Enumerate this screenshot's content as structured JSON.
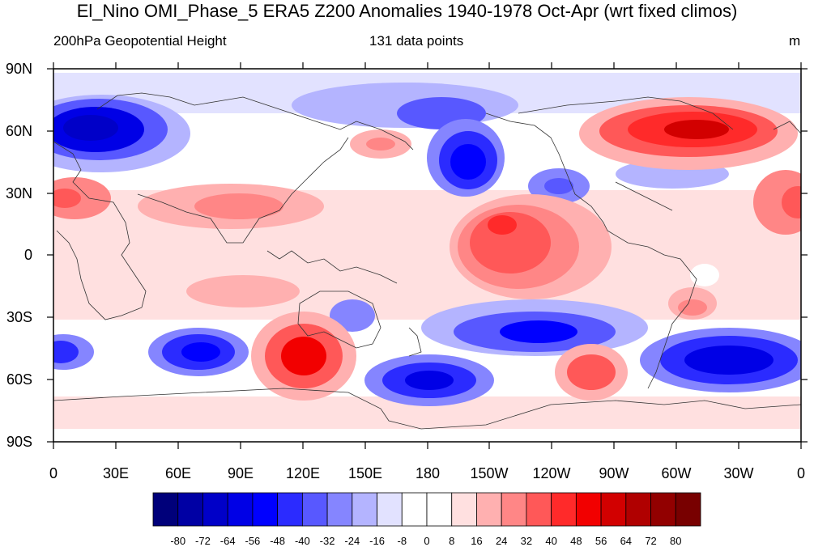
{
  "title": "El_Nino OMI_Phase_5 ERA5 Z200 Anomalies 1940-1978 Oct-Apr (wrt fixed climos)",
  "subtitle_left": "200hPa Geopotential Height",
  "subtitle_center": "131 data points",
  "units": "m",
  "lat_labels": [
    "90N",
    "60N",
    "30N",
    "0",
    "30S",
    "60S",
    "90S"
  ],
  "lon_labels": [
    "0",
    "30E",
    "60E",
    "90E",
    "120E",
    "150E",
    "180",
    "150W",
    "120W",
    "90W",
    "60W",
    "30W",
    "0"
  ],
  "colorbar": {
    "labels": [
      "-80",
      "-72",
      "-64",
      "-56",
      "-48",
      "-40",
      "-32",
      "-24",
      "-16",
      "-8",
      "0",
      "8",
      "16",
      "24",
      "32",
      "40",
      "48",
      "56",
      "64",
      "72",
      "80"
    ],
    "colors": [
      "#00007a",
      "#0000a4",
      "#0000c8",
      "#0000e6",
      "#0000ff",
      "#2b2bff",
      "#5858ff",
      "#8585ff",
      "#b4b4ff",
      "#e2e2ff",
      "#ffffff",
      "#ffffff",
      "#ffe0e0",
      "#ffb0b0",
      "#ff8686",
      "#ff5858",
      "#ff2a2a",
      "#f20000",
      "#d20000",
      "#b00000",
      "#920000",
      "#780000"
    ]
  }
}
